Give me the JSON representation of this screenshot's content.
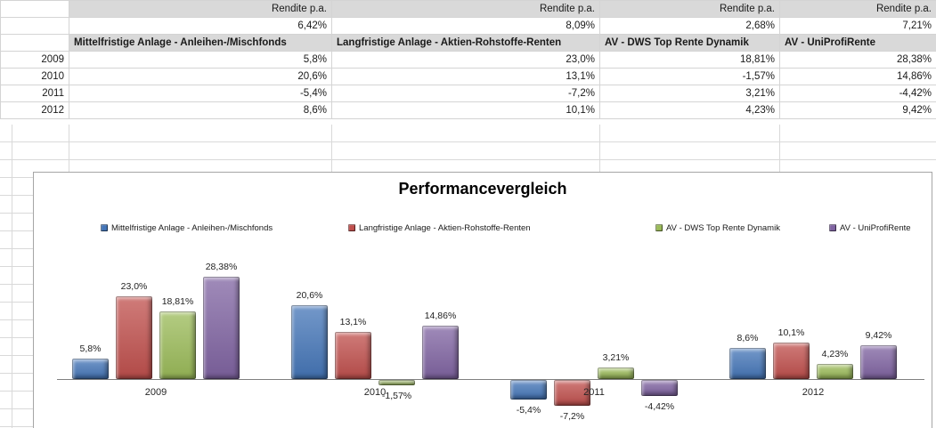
{
  "table": {
    "rendite_label": "Rendite p.a.",
    "columns": [
      {
        "header": "Mittelfristige Anlage - Anleihen-/Mischfonds",
        "rendite": "6,42%"
      },
      {
        "header": "Langfristige Anlage - Aktien-Rohstoffe-Renten",
        "rendite": "8,09%"
      },
      {
        "header": "AV - DWS Top Rente Dynamik",
        "rendite": "2,68%"
      },
      {
        "header": "AV - UniProfiRente",
        "rendite": "7,21%"
      }
    ],
    "rows": [
      {
        "year": "2009",
        "values": [
          "5,8%",
          "23,0%",
          "18,81%",
          "28,38%"
        ]
      },
      {
        "year": "2010",
        "values": [
          "20,6%",
          "13,1%",
          "-1,57%",
          "14,86%"
        ]
      },
      {
        "year": "2011",
        "values": [
          "-5,4%",
          "-7,2%",
          "3,21%",
          "-4,42%"
        ]
      },
      {
        "year": "2012",
        "values": [
          "8,6%",
          "10,1%",
          "4,23%",
          "9,42%"
        ]
      }
    ]
  },
  "chart_data": {
    "type": "bar",
    "title": "Performancevergleich",
    "categories": [
      "2009",
      "2010",
      "2011",
      "2012"
    ],
    "series": [
      {
        "name": "Mittelfristige Anlage - Anleihen-/Mischfonds",
        "color": "#4576b8",
        "values": [
          5.8,
          20.6,
          -5.4,
          8.6
        ],
        "labels": [
          "5,8%",
          "20,6%",
          "-5,4%",
          "8,6%"
        ]
      },
      {
        "name": "Langfristige Anlage - Aktien-Rohstoffe-Renten",
        "color": "#c0504d",
        "values": [
          23.0,
          13.1,
          -7.2,
          10.1
        ],
        "labels": [
          "23,0%",
          "13,1%",
          "-7,2%",
          "10,1%"
        ]
      },
      {
        "name": "AV - DWS Top Rente Dynamik",
        "color": "#9bbb59",
        "values": [
          18.81,
          -1.57,
          3.21,
          4.23
        ],
        "labels": [
          "18,81%",
          "-1,57%",
          "3,21%",
          "4,23%"
        ]
      },
      {
        "name": "AV - UniProfiRente",
        "color": "#8064a2",
        "values": [
          28.38,
          14.86,
          -4.42,
          9.42
        ],
        "labels": [
          "28,38%",
          "14,86%",
          "-4,42%",
          "9,42%"
        ]
      }
    ],
    "xlabel": "",
    "ylabel": "",
    "ylim": [
      -10,
      32
    ],
    "grid": false,
    "legend_position": "top",
    "data_labels": true
  }
}
